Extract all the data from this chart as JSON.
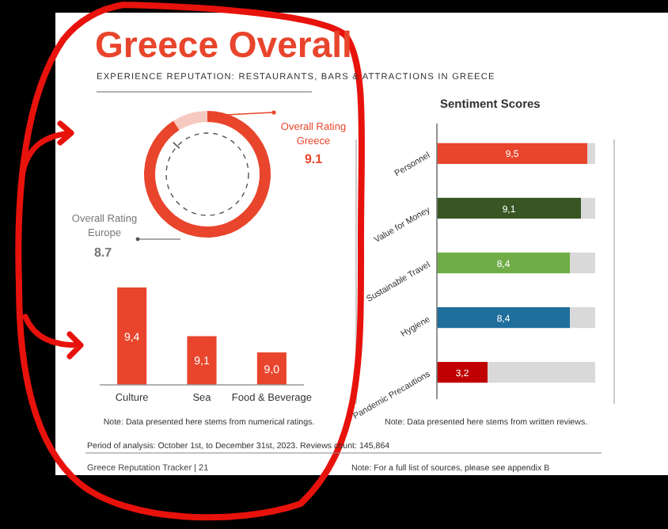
{
  "chart_data": [
    {
      "type": "donut",
      "title": "Greece Overall",
      "subtitle": "EXPERIENCE REPUTATION: RESTAURANTS, BARS & ATTRACTIONS IN GREECE",
      "categories": [
        "Overall Rating Greece",
        null
      ],
      "values": [
        9.1,
        0.9
      ],
      "value_labels": [
        "9.1",
        null
      ],
      "colors": [
        "#e8452c",
        "#f6c9c0"
      ],
      "annotations": [
        "Overall Rating Europe 8.7"
      ]
    },
    {
      "type": "bar",
      "categories": [
        "Culture",
        "Sea",
        "Food & Beverage"
      ],
      "values": [
        9.4,
        9.1,
        9.0
      ],
      "value_labels": [
        "9,4",
        "9,1",
        "9,0"
      ],
      "ylim": [
        8.8,
        9.4
      ],
      "tick_labels": "x",
      "color": "#e8452c",
      "annotations": [
        "Note: Data presented here stems from numerical ratings.",
        "Period of analysis: October 1st, to December 31st, 2023. Reviews count: 145,864",
        "Greece Reputation Tracker | 21"
      ]
    },
    {
      "type": "bar",
      "orientation": "horizontal",
      "stacked": true,
      "title": "Sentiment Scores",
      "categories": [
        "Personnel",
        "Value for Money",
        "Sustainable Travel",
        "Hygiene",
        "Pandemic Precautions"
      ],
      "xlim": [
        0,
        10
      ],
      "tick_labels": "y",
      "series": [
        {
          "colors": [
            "#e8452c",
            "#375623",
            "#70ad47",
            "#1f6e9c",
            "#c00000"
          ],
          "values": [
            9.5,
            9.1,
            8.4,
            8.4,
            3.2
          ],
          "value_labels": [
            "9,5",
            "9,1",
            "8,4",
            "8,4",
            "3,2"
          ]
        },
        {
          "color": "#d9d9d9",
          "values": [
            0.5,
            0.9,
            1.6,
            1.6,
            6.8
          ]
        }
      ],
      "annotations": [
        "Note: Data presented here stems from written reviews.",
        "Note: For a full list of sources, please see appendix B"
      ]
    }
  ]
}
